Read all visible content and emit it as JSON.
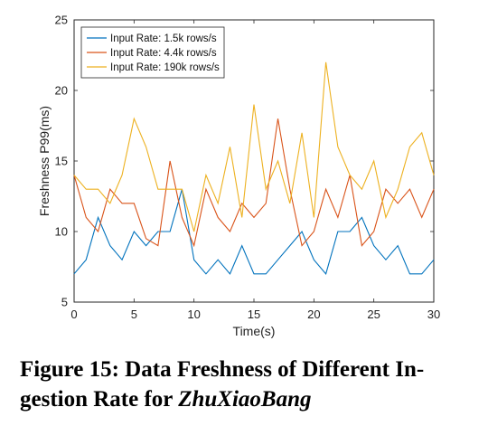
{
  "chart_data": {
    "type": "line",
    "xlabel": "Time(s)",
    "ylabel": "Freshness P99(ms)",
    "xlim": [
      0,
      30
    ],
    "ylim": [
      5,
      25
    ],
    "xticks": [
      0,
      5,
      10,
      15,
      20,
      25,
      30
    ],
    "yticks": [
      5,
      10,
      15,
      20,
      25
    ],
    "grid": false,
    "legend_position": "top-left",
    "x": [
      0,
      1,
      2,
      3,
      4,
      5,
      6,
      7,
      8,
      9,
      10,
      11,
      12,
      13,
      14,
      15,
      16,
      17,
      18,
      19,
      20,
      21,
      22,
      23,
      24,
      25,
      26,
      27,
      28,
      29,
      30
    ],
    "series": [
      {
        "name": "Input Rate: 1.5k rows/s",
        "color": "#0072bd",
        "values": [
          7,
          8,
          11,
          9,
          8,
          10,
          9,
          10,
          10,
          13,
          8,
          7,
          8,
          7,
          9,
          7,
          7,
          8,
          9,
          10,
          8,
          7,
          10,
          10,
          11,
          9,
          8,
          9,
          7,
          7,
          8
        ]
      },
      {
        "name": "Input Rate: 4.4k rows/s",
        "color": "#d95319",
        "values": [
          14,
          11,
          10,
          13,
          12,
          12,
          9.5,
          9,
          15,
          11,
          9,
          13,
          11,
          10,
          12,
          11,
          12,
          18,
          13,
          9,
          10,
          13,
          11,
          14,
          9,
          10,
          13,
          12,
          13,
          11,
          13
        ]
      },
      {
        "name": "Input Rate: 190k rows/s",
        "color": "#edb120",
        "values": [
          14,
          13,
          13,
          12,
          14,
          18,
          16,
          13,
          13,
          13,
          10,
          14,
          12,
          16,
          11,
          19,
          13,
          15,
          12,
          17,
          11,
          22,
          16,
          14,
          13,
          15,
          11,
          13,
          16,
          17,
          14
        ]
      }
    ]
  },
  "caption": {
    "prefix": "Figure 15: Data Freshness of Different In-gestion Rate for ",
    "emphasis": "ZhuXiaoBang"
  }
}
